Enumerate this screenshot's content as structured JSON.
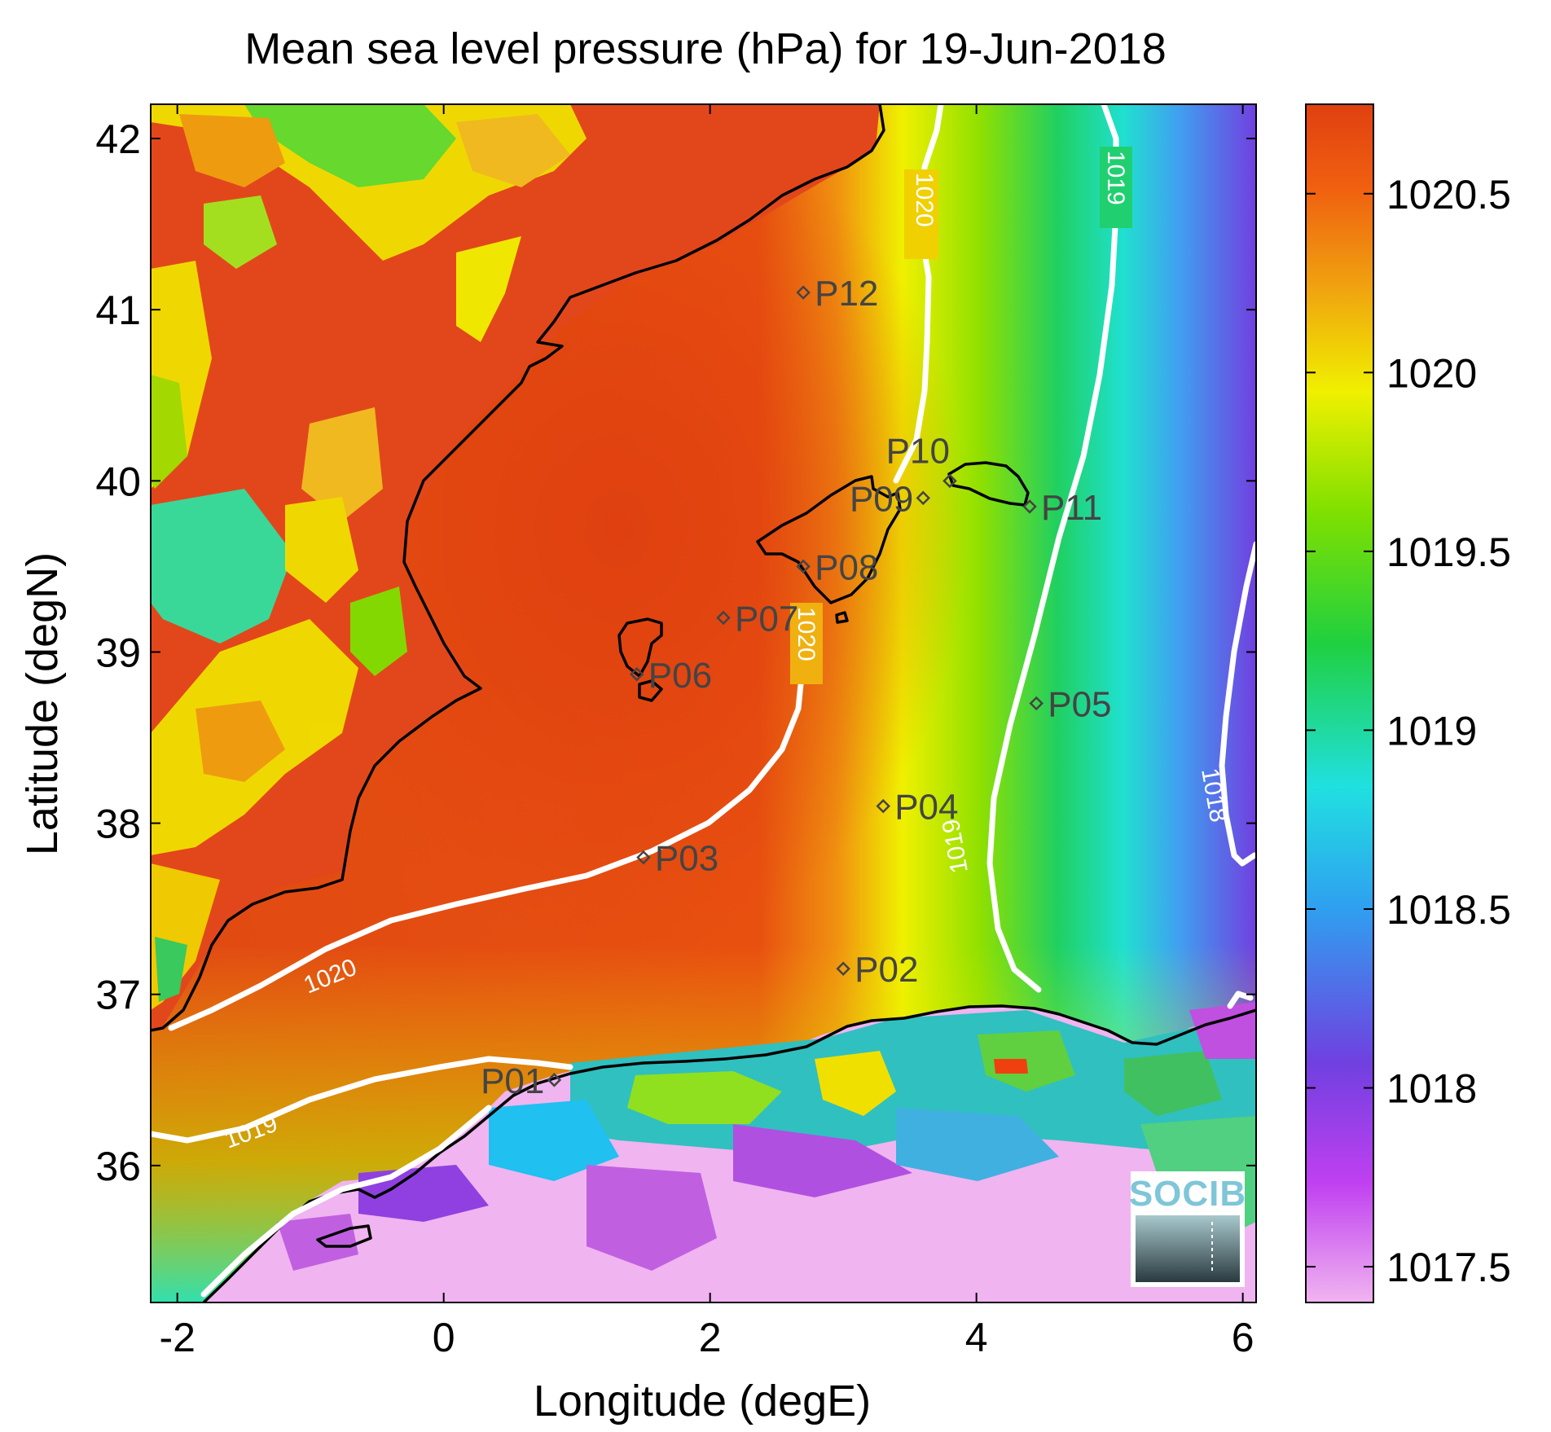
{
  "title": "Mean sea level pressure (hPa) for 19-Jun-2018",
  "xlabel": "Longitude (degE)",
  "ylabel": "Latitude (degN)",
  "x_ticks": [
    "-2",
    "0",
    "2",
    "4",
    "6"
  ],
  "y_ticks": [
    "42",
    "41",
    "40",
    "39",
    "38",
    "37",
    "36"
  ],
  "colorbar": {
    "ticks": [
      "1020.5",
      "1020",
      "1019.5",
      "1019",
      "1018.5",
      "1018",
      "1017.5"
    ],
    "range": [
      1017.4,
      1020.75
    ],
    "colors": [
      "#f0b4f0",
      "#c040f0",
      "#7040e0",
      "#2fa0f0",
      "#20e0e0",
      "#20d040",
      "#80e000",
      "#f0f000",
      "#f0a010",
      "#f06010",
      "#e04010"
    ]
  },
  "chart_data": {
    "type": "heatmap",
    "title": "Mean sea level pressure (hPa) for 19-Jun-2018",
    "xlabel": "Longitude (degE)",
    "ylabel": "Latitude (degN)",
    "xlim": [
      -2.2,
      6.1
    ],
    "ylim": [
      35.2,
      42.2
    ],
    "contours": [
      {
        "level": "1020",
        "label": "1020"
      },
      {
        "level": "1019",
        "label": "1019"
      },
      {
        "level": "1018",
        "label": "1018"
      }
    ],
    "stations": [
      {
        "name": "P01",
        "lon": 0.83,
        "lat": 36.5
      },
      {
        "name": "P02",
        "lon": 3.0,
        "lat": 37.15
      },
      {
        "name": "P03",
        "lon": 1.5,
        "lat": 37.8
      },
      {
        "name": "P04",
        "lon": 3.3,
        "lat": 38.1
      },
      {
        "name": "P05",
        "lon": 4.45,
        "lat": 38.7
      },
      {
        "name": "P06",
        "lon": 1.45,
        "lat": 38.87
      },
      {
        "name": "P07",
        "lon": 2.1,
        "lat": 39.2
      },
      {
        "name": "P08",
        "lon": 2.7,
        "lat": 39.5
      },
      {
        "name": "P09",
        "lon": 3.6,
        "lat": 39.9
      },
      {
        "name": "P10",
        "lon": 3.8,
        "lat": 40.0
      },
      {
        "name": "P11",
        "lon": 4.4,
        "lat": 39.85
      },
      {
        "name": "P12",
        "lon": 2.7,
        "lat": 41.1
      }
    ]
  },
  "logo": {
    "text": "SOCIB"
  }
}
